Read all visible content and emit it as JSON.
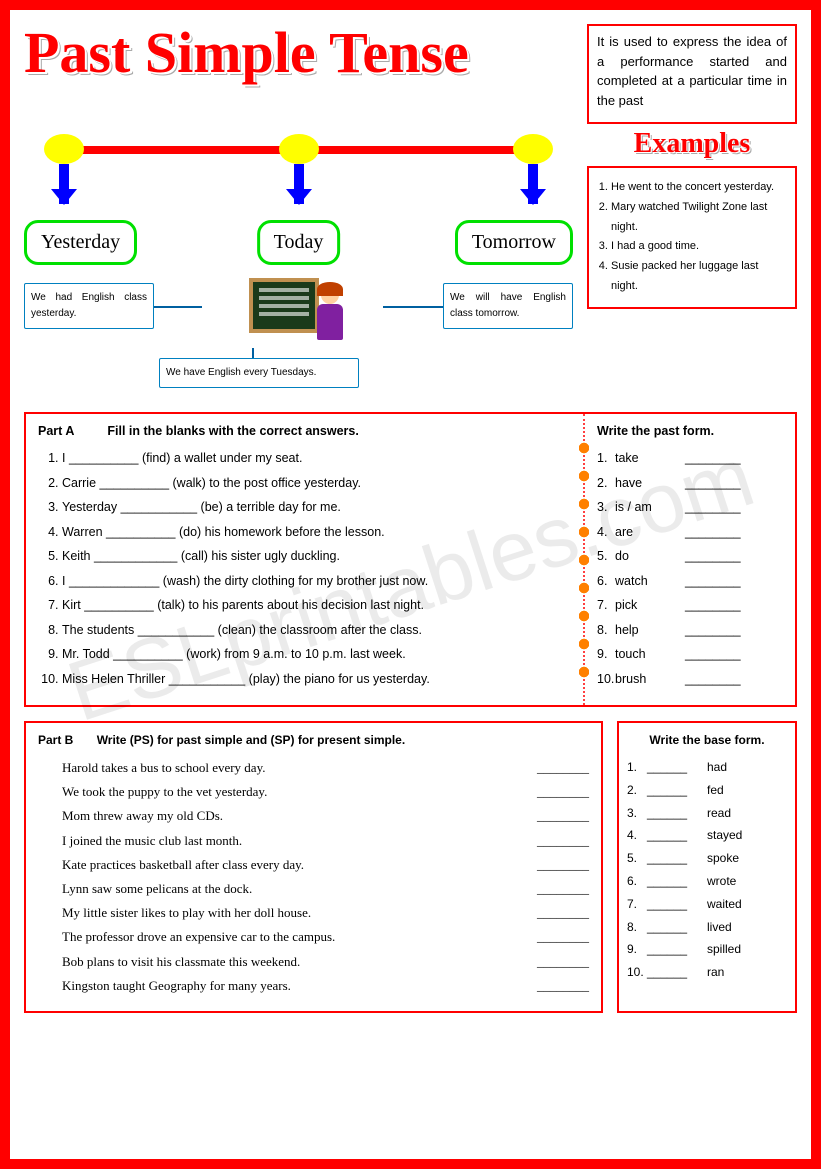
{
  "title": "Past Simple Tense",
  "description": "It is used to express the idea of a performance started and completed at a particular time in the past",
  "timeline": {
    "labels": [
      "Yesterday",
      "Today",
      "Tomorrow"
    ],
    "examples": [
      "We had English class yesterday.",
      "We have English every Tuesdays.",
      "We will have English class tomorrow."
    ]
  },
  "examples_title": "Examples",
  "examples": [
    "He went to the concert yesterday.",
    "Mary watched Twilight Zone last night.",
    "I had a good time.",
    "Susie packed her luggage last night."
  ],
  "partA": {
    "label": "Part A",
    "instruction": "Fill in the blanks with the correct answers.",
    "items": [
      "I __________ (find) a wallet under my seat.",
      "Carrie __________ (walk) to the post office yesterday.",
      "Yesterday ___________ (be) a terrible day for me.",
      "Warren __________ (do) his homework before the lesson.",
      "Keith ____________ (call) his sister ugly duckling.",
      "I _____________ (wash) the dirty clothing for my brother just now.",
      "Kirt __________ (talk) to his parents about his decision last night.",
      "The students ___________ (clean) the classroom after the class.",
      "Mr. Todd __________ (work) from 9 a.m. to 10 p.m. last week.",
      "Miss Helen Thriller ___________ (play) the piano for us yesterday."
    ]
  },
  "pastForm": {
    "label": "Write the past form.",
    "items": [
      "take",
      "have",
      "is / am",
      "are",
      "do",
      "watch",
      "pick",
      "help",
      "touch",
      "brush"
    ]
  },
  "partB": {
    "label": "Part B",
    "instruction": "Write (PS) for past simple and (SP) for present simple.",
    "items": [
      "Harold takes a bus to school every day.",
      "We took the puppy to the vet yesterday.",
      "Mom threw away my old CDs.",
      "I joined the music club last month.",
      "Kate practices basketball after class every day.",
      "Lynn saw some pelicans at the dock.",
      "My little sister likes to play with her doll house.",
      "The professor drove an expensive car to the campus.",
      "Bob plans to visit his classmate this weekend.",
      "Kingston taught Geography for many years."
    ]
  },
  "baseForm": {
    "label": "Write the base form.",
    "items": [
      "had",
      "fed",
      "read",
      "stayed",
      "spoke",
      "wrote",
      "waited",
      "lived",
      "spilled",
      "ran"
    ]
  },
  "blank": "________",
  "colors": {
    "border": "#ff0000",
    "dot": "#ffff00",
    "arrow": "#0000ff",
    "timebox": "#00e000",
    "smallbox": "#0080c0"
  },
  "watermark": "ESLprintables.com"
}
